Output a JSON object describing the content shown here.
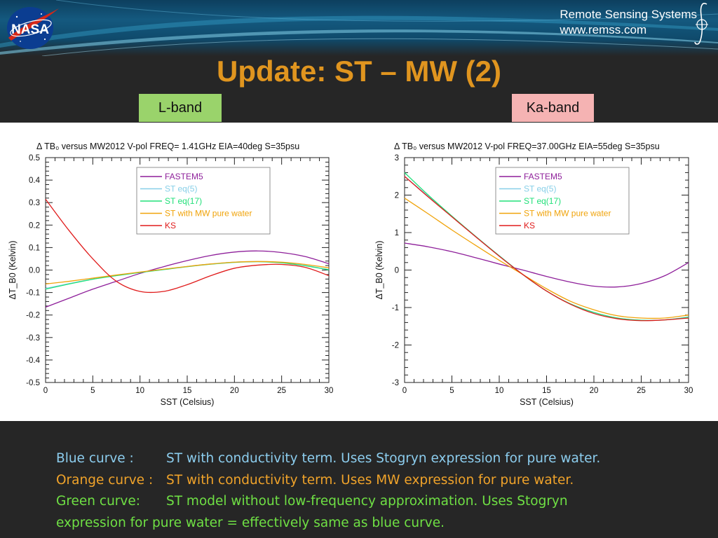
{
  "header": {
    "brand_line1": "Remote Sensing Systems",
    "brand_line2": "www.remss.com",
    "logo_text": "NASA"
  },
  "slide_title": "Update: ST – MW (2)",
  "band_labels": {
    "left": "L-band",
    "right": "Ka-band"
  },
  "colors": {
    "FASTEM5": "#8e1f9a",
    "ST eq(5)": "#87cfe8",
    "ST eq(17)": "#22e07a",
    "ST with MW pure water": "#f0a30a",
    "KS": "#e01b1b",
    "title": "#e0951f",
    "blue_caption": "#8ccdee",
    "orange_caption": "#f0a32a",
    "green_caption": "#6fe044"
  },
  "chart_data": [
    {
      "type": "line",
      "title": "Δ TB₀ versus MW2012 V-pol FREQ= 1.41GHz EIA=40deg S=35psu",
      "xlabel": "SST (Celsius)",
      "ylabel": "ΔT_B0 (Kelvin)",
      "xlim": [
        0,
        30
      ],
      "ylim": [
        -0.5,
        0.5
      ],
      "xticks": [
        0,
        5,
        10,
        15,
        20,
        25,
        30
      ],
      "yticks": [
        -0.5,
        -0.4,
        -0.3,
        -0.2,
        -0.1,
        0.0,
        0.1,
        0.2,
        0.3,
        0.4,
        0.5
      ],
      "ytick_labels": [
        "-0.5",
        "-0.4",
        "-0.3",
        "-0.2",
        "-0.1",
        "0.0",
        "0.1",
        "0.2",
        "0.3",
        "0.4",
        "0.5"
      ],
      "legend_position": "top-center",
      "x": [
        0,
        2.5,
        5,
        7.5,
        10,
        12.5,
        15,
        17.5,
        20,
        22.5,
        25,
        27.5,
        30
      ],
      "series": [
        {
          "name": "FASTEM5",
          "values": [
            -0.165,
            -0.125,
            -0.085,
            -0.05,
            -0.015,
            0.015,
            0.042,
            0.065,
            0.08,
            0.085,
            0.078,
            0.06,
            0.028
          ]
        },
        {
          "name": "ST eq(5)",
          "values": [
            -0.082,
            -0.06,
            -0.04,
            -0.024,
            -0.01,
            0.003,
            0.016,
            0.027,
            0.035,
            0.038,
            0.033,
            0.02,
            0.002
          ]
        },
        {
          "name": "ST eq(17)",
          "values": [
            -0.085,
            -0.062,
            -0.041,
            -0.025,
            -0.011,
            0.002,
            0.015,
            0.026,
            0.034,
            0.037,
            0.032,
            0.019,
            0.001
          ]
        },
        {
          "name": "ST with MW pure water",
          "values": [
            -0.062,
            -0.05,
            -0.036,
            -0.022,
            -0.009,
            0.004,
            0.016,
            0.027,
            0.035,
            0.038,
            0.035,
            0.025,
            0.01
          ]
        },
        {
          "name": "KS",
          "values": [
            0.315,
            0.175,
            0.05,
            -0.05,
            -0.095,
            -0.095,
            -0.065,
            -0.025,
            0.008,
            0.022,
            0.025,
            0.012,
            -0.025
          ]
        }
      ]
    },
    {
      "type": "line",
      "title": "Δ TB₀ versus MW2012 V-pol FREQ=37.00GHz EIA=55deg S=35psu",
      "xlabel": "SST (Celsius)",
      "ylabel": "ΔT_B0 (Kelvin)",
      "xlim": [
        0,
        30
      ],
      "ylim": [
        -3,
        3
      ],
      "xticks": [
        0,
        5,
        10,
        15,
        20,
        25,
        30
      ],
      "yticks": [
        -3,
        -2,
        -1,
        0,
        1,
        2,
        3
      ],
      "ytick_labels": [
        "-3",
        "-2",
        "-1",
        "0",
        "1",
        "2",
        "3"
      ],
      "legend_position": "top-right",
      "x": [
        0,
        2.5,
        5,
        7.5,
        10,
        12.5,
        15,
        17.5,
        20,
        22.5,
        25,
        27.5,
        30
      ],
      "series": [
        {
          "name": "FASTEM5",
          "values": [
            0.72,
            0.62,
            0.49,
            0.33,
            0.16,
            0.0,
            -0.17,
            -0.32,
            -0.43,
            -0.45,
            -0.36,
            -0.15,
            0.2
          ]
        },
        {
          "name": "ST eq(5)",
          "values": [
            2.5,
            1.97,
            1.43,
            0.9,
            0.38,
            -0.12,
            -0.56,
            -0.9,
            -1.13,
            -1.28,
            -1.34,
            -1.33,
            -1.25
          ]
        },
        {
          "name": "ST eq(17)",
          "values": [
            2.6,
            2.0,
            1.44,
            0.9,
            0.38,
            -0.12,
            -0.56,
            -0.9,
            -1.13,
            -1.28,
            -1.34,
            -1.33,
            -1.26
          ]
        },
        {
          "name": "ST with MW pure water",
          "values": [
            1.92,
            1.5,
            1.07,
            0.66,
            0.26,
            -0.12,
            -0.5,
            -0.83,
            -1.06,
            -1.22,
            -1.28,
            -1.28,
            -1.2
          ]
        },
        {
          "name": "KS",
          "values": [
            2.5,
            1.95,
            1.42,
            0.89,
            0.37,
            -0.12,
            -0.56,
            -0.91,
            -1.16,
            -1.3,
            -1.35,
            -1.33,
            -1.28
          ]
        }
      ]
    }
  ],
  "caption": [
    {
      "label": "Blue curve :",
      "text": "ST with conductivity term. Uses Stogryn expression for pure water.",
      "color_key": "blue_caption"
    },
    {
      "label": "Orange curve :",
      "text": "ST with conductivity term. Uses MW expression for pure water.",
      "color_key": "orange_caption"
    },
    {
      "label": "Green curve:",
      "text": "ST model without low-frequency approximation. Uses Stogryn",
      "color_key": "green_caption"
    },
    {
      "label": "",
      "text": "expression for pure water = effectively same as blue curve.",
      "color_key": "green_caption"
    }
  ]
}
